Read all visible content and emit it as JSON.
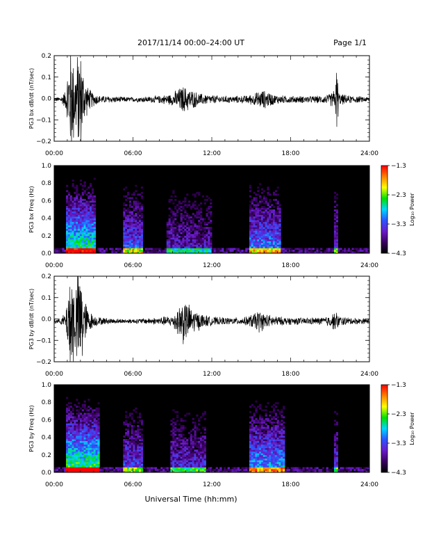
{
  "header": {
    "title": "2017/11/14  00:00–24:00 UT",
    "page": "Page 1/1"
  },
  "x_axis": {
    "title": "Universal Time (hh:mm)",
    "ticks": [
      "00:00",
      "06:00",
      "12:00",
      "18:00",
      "24:00"
    ],
    "range_hours": [
      0,
      24
    ]
  },
  "colors": {
    "background": "#ffffff",
    "trace": "#000000",
    "spectrogram_background": "#000000",
    "colormap": [
      "#000000",
      "#3a0060",
      "#6a1bc9",
      "#2e54ff",
      "#00d7ff",
      "#00e000",
      "#ffff00",
      "#ff8000",
      "#ff0000"
    ]
  },
  "chart_data": [
    {
      "type": "line",
      "ylabel": "PG3 bx dB/dt (nT/sec)",
      "x_units": "hours UT",
      "ylim": [
        -0.2,
        0.2
      ],
      "yticks": [
        "0.2",
        "0.1",
        "0.0",
        "−0.1",
        "−0.2"
      ],
      "ytick_values": [
        0.2,
        0.1,
        0.0,
        -0.1,
        -0.2
      ],
      "baseline": -0.005,
      "envelope": {
        "hours": [
          0,
          0.5,
          0.9,
          1.1,
          1.3,
          1.6,
          1.9,
          2.1,
          2.3,
          2.6,
          3.0,
          3.5,
          4.2,
          5.0,
          6.0,
          7.0,
          8.0,
          9.0,
          9.3,
          9.8,
          10.2,
          10.6,
          11.2,
          11.8,
          12.5,
          13.5,
          14.5,
          15.2,
          15.8,
          16.3,
          16.8,
          17.5,
          18.5,
          19.5,
          20.5,
          21.0,
          21.4,
          21.5,
          21.7,
          22.5,
          23.5,
          24
        ],
        "amplitude": [
          0.01,
          0.015,
          0.05,
          0.22,
          0.3,
          0.18,
          0.28,
          0.22,
          0.12,
          0.06,
          0.035,
          0.02,
          0.018,
          0.015,
          0.012,
          0.015,
          0.02,
          0.03,
          0.05,
          0.07,
          0.06,
          0.045,
          0.03,
          0.025,
          0.02,
          0.018,
          0.02,
          0.03,
          0.05,
          0.04,
          0.025,
          0.02,
          0.018,
          0.018,
          0.02,
          0.03,
          0.06,
          0.18,
          0.03,
          0.02,
          0.015,
          0.012
        ]
      }
    },
    {
      "type": "heatmap",
      "ylabel": "PG3 bx Freq (Hz)",
      "colorbar_label": "Log₁₀ Power",
      "colorbar_ticks": [
        "−1.3",
        "−2.3",
        "−3.3",
        "−4.3"
      ],
      "colorbar_values": [
        -1.3,
        -2.3,
        -3.3,
        -4.3
      ],
      "ylim": [
        0,
        1.0
      ],
      "yticks": [
        "1.0",
        "0.8",
        "0.6",
        "0.4",
        "0.2",
        "0.0"
      ],
      "ytick_values": [
        1.0,
        0.8,
        0.6,
        0.4,
        0.2,
        0.0
      ],
      "activity_bands": [
        {
          "start": 0.9,
          "end": 3.2,
          "level": 0.85
        },
        {
          "start": 5.3,
          "end": 6.7,
          "level": 0.6
        },
        {
          "start": 8.5,
          "end": 12.0,
          "level": 0.45
        },
        {
          "start": 14.8,
          "end": 17.2,
          "level": 0.65
        },
        {
          "start": 21.3,
          "end": 21.6,
          "level": 0.55
        }
      ]
    },
    {
      "type": "line",
      "ylabel": "PG3 by dB/dt (nT/sec)",
      "x_units": "hours UT",
      "ylim": [
        -0.2,
        0.2
      ],
      "yticks": [
        "0.2",
        "0.1",
        "0.0",
        "−0.1",
        "−0.2"
      ],
      "ytick_values": [
        0.2,
        0.1,
        0.0,
        -0.1,
        -0.2
      ],
      "baseline": -0.01,
      "envelope": {
        "hours": [
          0,
          0.5,
          0.9,
          1.1,
          1.3,
          1.6,
          1.9,
          2.1,
          2.3,
          2.6,
          3.0,
          3.5,
          4.2,
          5.0,
          6.0,
          7.0,
          8.0,
          9.0,
          9.5,
          9.8,
          10.2,
          10.6,
          11.2,
          11.8,
          12.5,
          13.5,
          14.5,
          15.2,
          15.6,
          16.0,
          16.5,
          17.5,
          18.5,
          19.5,
          20.5,
          21.0,
          21.4,
          21.6,
          21.8,
          22.5,
          23.5,
          24
        ],
        "amplitude": [
          0.01,
          0.015,
          0.05,
          0.2,
          0.3,
          0.18,
          0.3,
          0.25,
          0.12,
          0.06,
          0.03,
          0.02,
          0.015,
          0.012,
          0.012,
          0.015,
          0.02,
          0.03,
          0.08,
          0.12,
          0.09,
          0.06,
          0.04,
          0.025,
          0.02,
          0.018,
          0.02,
          0.04,
          0.06,
          0.04,
          0.03,
          0.02,
          0.018,
          0.018,
          0.02,
          0.03,
          0.05,
          0.04,
          0.025,
          0.018,
          0.015,
          0.012
        ]
      }
    },
    {
      "type": "heatmap",
      "ylabel": "PG3 by Freq (Hz)",
      "colorbar_label": "Log₁₀ Power",
      "colorbar_ticks": [
        "−1.3",
        "−2.3",
        "−3.3",
        "−4.3"
      ],
      "colorbar_values": [
        -1.3,
        -2.3,
        -3.3,
        -4.3
      ],
      "ylim": [
        0,
        1.0
      ],
      "yticks": [
        "1.0",
        "0.8",
        "0.6",
        "0.4",
        "0.2",
        "0.0"
      ],
      "ytick_values": [
        1.0,
        0.8,
        0.6,
        0.4,
        0.2,
        0.0
      ],
      "activity_bands": [
        {
          "start": 0.9,
          "end": 3.4,
          "level": 0.9
        },
        {
          "start": 5.2,
          "end": 6.7,
          "level": 0.55
        },
        {
          "start": 8.8,
          "end": 11.5,
          "level": 0.5
        },
        {
          "start": 14.8,
          "end": 17.5,
          "level": 0.7
        },
        {
          "start": 21.3,
          "end": 21.6,
          "level": 0.5
        }
      ]
    }
  ]
}
